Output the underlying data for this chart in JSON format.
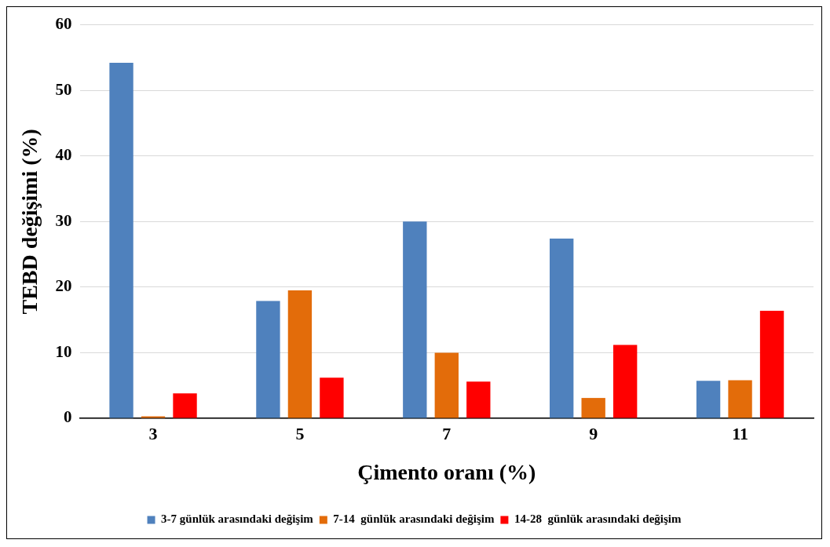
{
  "chart_data": {
    "type": "bar",
    "xlabel": "Çimento oranı (%)",
    "ylabel": "TEBD değişimi (%)",
    "categories": [
      "3",
      "5",
      "7",
      "9",
      "11"
    ],
    "series": [
      {
        "name": "3-7 günlük arasındaki değişim",
        "color": "#4f81bd",
        "values": [
          54.2,
          17.9,
          30.0,
          27.4,
          5.7
        ]
      },
      {
        "name": "7-14  günlük arasındaki değişim",
        "color": "#e36c0a",
        "values": [
          0.3,
          19.5,
          10.0,
          3.1,
          5.8
        ]
      },
      {
        "name": "14-28  günlük arasındaki değişim",
        "color": "#ff0000",
        "values": [
          3.8,
          6.2,
          5.6,
          11.2,
          16.4
        ]
      }
    ],
    "ylim": [
      0,
      60
    ],
    "yticks": [
      0,
      10,
      20,
      30,
      40,
      50,
      60
    ],
    "grid": "y",
    "legend": "bottom"
  }
}
